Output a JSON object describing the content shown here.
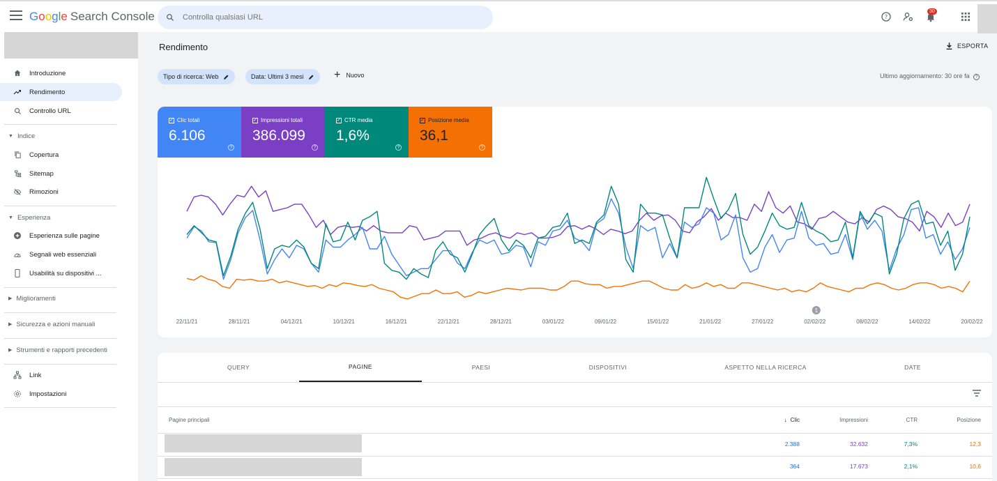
{
  "app": {
    "logo_letters": [
      "G",
      "o",
      "o",
      "g",
      "l",
      "e"
    ],
    "product": "Search Console"
  },
  "search": {
    "placeholder": "Controlla qualsiasi URL"
  },
  "notifications": {
    "count": "30"
  },
  "sidebar": {
    "items": [
      {
        "label": "Introduzione",
        "icon": "home-icon"
      },
      {
        "label": "Rendimento",
        "icon": "trending-up-icon",
        "active": true
      },
      {
        "label": "Controllo URL",
        "icon": "search-icon"
      }
    ],
    "sections": [
      {
        "label": "Indice",
        "expanded": true,
        "items": [
          {
            "label": "Copertura",
            "icon": "copy-icon"
          },
          {
            "label": "Sitemap",
            "icon": "sitemap-icon"
          },
          {
            "label": "Rimozioni",
            "icon": "visibility-off-icon"
          }
        ]
      },
      {
        "label": "Esperienza",
        "expanded": true,
        "items": [
          {
            "label": "Esperienza sulle pagine",
            "icon": "add-circle-icon"
          },
          {
            "label": "Segnali web essenziali",
            "icon": "speed-icon"
          },
          {
            "label": "Usabilità su dispositivi ...",
            "icon": "smartphone-icon"
          }
        ]
      },
      {
        "label": "Miglioramenti",
        "expanded": false
      },
      {
        "label": "Sicurezza e azioni manuali",
        "expanded": false
      },
      {
        "label": "Strumenti e rapporti precedenti",
        "expanded": false
      }
    ],
    "footer_items": [
      {
        "label": "Link",
        "icon": "links-icon"
      },
      {
        "label": "Impostazioni",
        "icon": "settings-icon"
      }
    ]
  },
  "header": {
    "title": "Rendimento",
    "export_label": "ESPORTA",
    "chips": [
      "Tipo di ricerca: Web",
      "Data: Ultimi 3 mesi"
    ],
    "new_label": "Nuovo",
    "updated": "Ultimo aggiornamento: 30 ore fa"
  },
  "metrics": [
    {
      "label": "Clic totali",
      "value": "6.106",
      "color": "#4285f4"
    },
    {
      "label": "Impressioni totali",
      "value": "386.099",
      "color": "#7b3fc6"
    },
    {
      "label": "CTR media",
      "value": "1,6%",
      "color": "#00897b"
    },
    {
      "label": "Posizione media",
      "value": "36,1",
      "color": "#f57002"
    }
  ],
  "chart_data": {
    "type": "line",
    "x_ticks": [
      "22/11/21",
      "28/11/21",
      "04/12/21",
      "10/12/21",
      "16/12/21",
      "22/12/21",
      "28/12/21",
      "03/01/22",
      "09/01/22",
      "15/01/22",
      "21/01/22",
      "27/01/22",
      "02/02/22",
      "08/02/22",
      "14/02/22",
      "20/02/22"
    ],
    "annotation": "1",
    "y_axes_hidden": true,
    "series": [
      {
        "name": "Impressioni totali",
        "color": "#7b3fc6",
        "values": [
          62,
          78,
          80,
          78,
          70,
          58,
          70,
          80,
          78,
          90,
          78,
          85,
          62,
          64,
          66,
          70,
          70,
          58,
          44,
          52,
          36,
          44,
          46,
          44,
          45,
          40,
          46,
          40,
          38,
          38,
          38,
          46,
          44,
          30,
          32,
          34,
          40,
          40,
          40,
          24,
          30,
          32,
          36,
          38,
          34,
          32,
          38,
          36,
          38,
          32,
          32,
          33,
          36,
          45,
          46,
          42,
          46,
          42,
          36,
          42,
          40,
          37,
          40,
          52,
          60,
          52,
          57,
          58,
          52,
          40,
          38,
          50,
          56,
          65,
          52,
          60,
          55,
          55,
          52,
          70,
          62,
          84,
          66,
          60,
          68,
          50,
          48,
          42,
          54,
          56,
          62,
          56,
          50,
          48,
          55,
          50,
          64,
          68,
          64,
          56,
          54,
          50,
          40,
          62,
          56,
          44,
          60,
          46,
          50,
          70
        ]
      },
      {
        "name": "Clic totali",
        "color": "#4285f4",
        "values": [
          32,
          45,
          40,
          28,
          27,
          -14,
          8,
          38,
          55,
          63,
          30,
          -8,
          8,
          20,
          10,
          24,
          20,
          4,
          -6,
          30,
          22,
          22,
          30,
          36,
          44,
          20,
          20,
          34,
          14,
          2,
          -10,
          -6,
          -2,
          -2,
          8,
          18,
          18,
          4,
          -2,
          16,
          30,
          26,
          30,
          14,
          16,
          24,
          22,
          0,
          28,
          24,
          40,
          42,
          52,
          32,
          28,
          18,
          48,
          54,
          76,
          60,
          22,
          -2,
          46,
          40,
          44,
          10,
          26,
          10,
          50,
          44,
          48,
          66,
          60,
          30,
          36,
          58,
          10,
          -6,
          -2,
          22,
          36,
          16,
          30,
          32,
          62,
          32,
          24,
          26,
          14,
          16,
          36,
          8,
          60,
          42,
          52,
          40,
          -4,
          20,
          36,
          64,
          66,
          32,
          36,
          14,
          28,
          8,
          20,
          44
        ]
      },
      {
        "name": "CTR media",
        "color": "#00897b",
        "values": [
          36,
          46,
          38,
          30,
          28,
          -10,
          12,
          42,
          60,
          72,
          42,
          -2,
          20,
          24,
          22,
          30,
          22,
          4,
          -2,
          48,
          28,
          30,
          50,
          30,
          52,
          56,
          62,
          4,
          -4,
          -6,
          -14,
          -2,
          -8,
          -12,
          18,
          28,
          14,
          10,
          -6,
          14,
          36,
          46,
          54,
          30,
          18,
          30,
          24,
          10,
          32,
          34,
          44,
          46,
          60,
          26,
          30,
          26,
          50,
          58,
          90,
          70,
          8,
          -6,
          70,
          60,
          60,
          58,
          32,
          10,
          66,
          66,
          66,
          100,
          76,
          54,
          64,
          82,
          36,
          14,
          22,
          40,
          60,
          46,
          42,
          44,
          72,
          46,
          40,
          36,
          28,
          30,
          50,
          10,
          62,
          48,
          60,
          56,
          -8,
          14,
          54,
          70,
          74,
          48,
          50,
          24,
          40,
          -4,
          14,
          56
        ]
      },
      {
        "name": "Posizione media",
        "color": "#f57002",
        "values": [
          -13,
          -15,
          -10,
          -14,
          -16,
          -22,
          -24,
          -14,
          -15,
          -14,
          -16,
          -16,
          -14,
          -18,
          -16,
          -18,
          -20,
          -22,
          -21,
          -24,
          -20,
          -22,
          -18,
          -19,
          -21,
          -22,
          -20,
          -24,
          -26,
          -28,
          -34,
          -36,
          -33,
          -30,
          -30,
          -26,
          -30,
          -30,
          -28,
          -34,
          -32,
          -28,
          -30,
          -28,
          -26,
          -24,
          -25,
          -26,
          -24,
          -24,
          -24,
          -26,
          -26,
          -22,
          -16,
          -16,
          -19,
          -20,
          -20,
          -24,
          -22,
          -22,
          -20,
          -18,
          -16,
          -16,
          -20,
          -24,
          -26,
          -26,
          -20,
          -24,
          -22,
          -18,
          -22,
          -20,
          -24,
          -24,
          -18,
          -18,
          -20,
          -22,
          -24,
          -26,
          -24,
          -28,
          -26,
          -28,
          -24,
          -18,
          -22,
          -24,
          -26,
          -28,
          -24,
          -24,
          -20,
          -18,
          -20,
          -24,
          -26,
          -24,
          -20,
          -18,
          -18,
          -20,
          -24,
          -22,
          -24,
          -28,
          -16
        ]
      }
    ]
  },
  "tabs": [
    {
      "label": "QUERY"
    },
    {
      "label": "PAGINE",
      "active": true
    },
    {
      "label": "PAESI"
    },
    {
      "label": "DISPOSITIVI"
    },
    {
      "label": "ASPETTO NELLA RICERCA"
    },
    {
      "label": "DATE"
    }
  ],
  "table": {
    "first_header": "Pagine principali",
    "columns": [
      "Clic",
      "Impressioni",
      "CTR",
      "Posizione"
    ],
    "sort_column": "Clic",
    "rows": [
      {
        "clic": "2.388",
        "impressioni": "32.632",
        "ctr": "7,3%",
        "posizione": "12,3"
      },
      {
        "clic": "364",
        "impressioni": "17.673",
        "ctr": "2,1%",
        "posizione": "10,6"
      }
    ]
  }
}
